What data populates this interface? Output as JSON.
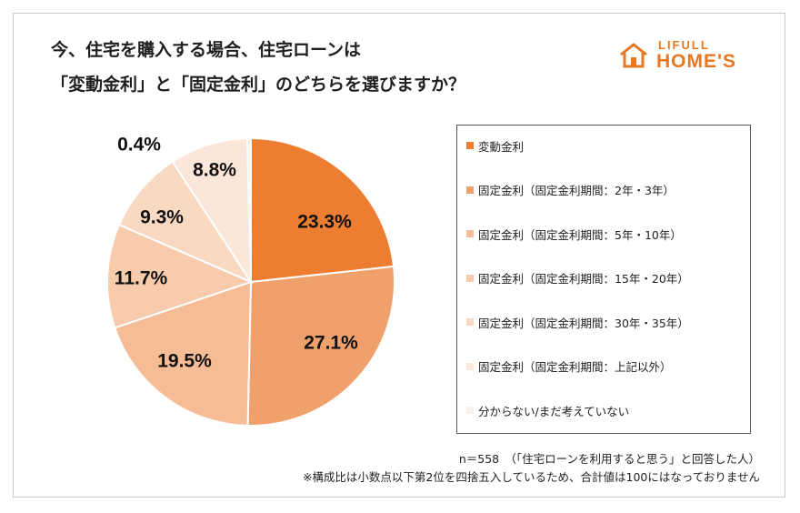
{
  "title": {
    "line1": "今、住宅を購入する場合、住宅ローンは",
    "line2": "「変動金利」と「固定金利」のどちらを選びますか？"
  },
  "logo": {
    "top": "LIFULL",
    "bottom": "HOME'S"
  },
  "colors": {
    "accent": "#e87722"
  },
  "chart_data": {
    "type": "pie",
    "series": [
      {
        "name": "変動金利",
        "values": [
          23.3,
          27.1,
          19.5,
          11.7,
          9.3,
          8.8,
          0.4
        ]
      }
    ],
    "categories": [
      "変動金利",
      "固定金利（固定金利期間：2年・3年）",
      "固定金利（固定金利期間：5年・10年）",
      "固定金利（固定金利期間：15年・20年）",
      "固定金利（固定金利期間：30年・35年）",
      "固定金利（固定金利期間：上記以外）",
      "分からない/まだ考えていない"
    ],
    "labels": [
      "23.3%",
      "27.1%",
      "19.5%",
      "11.7%",
      "9.3%",
      "8.8%",
      "0.4%"
    ],
    "colors": [
      "#ed7d31",
      "#f0a06a",
      "#f5bc95",
      "#f7cbac",
      "#f9d9c2",
      "#fbe7d9",
      "#fdf1ea"
    ],
    "legend_position": "right"
  },
  "notes": {
    "line1": "n＝558　（「住宅ローンを利用すると思う」と回答した人）",
    "line2": "※構成比は小数点以下第2位を四捨五入しているため、合計値は100にはなっておりません"
  }
}
